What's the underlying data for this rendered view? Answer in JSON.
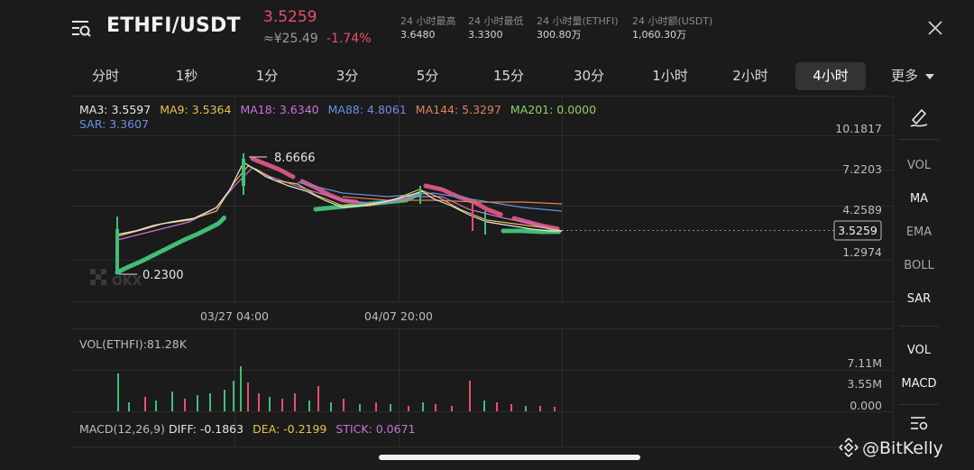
{
  "header": {
    "pair": "ETHFI/USDT",
    "price": "3.5259",
    "fiat_price": "≈¥25.49",
    "change": "-1.74%",
    "stats": [
      {
        "label": "24 小时最高",
        "value": "3.6480"
      },
      {
        "label": "24 小时最低",
        "value": "3.3300"
      },
      {
        "label": "24 小时量(ETHFI)",
        "value": "300.80万"
      },
      {
        "label": "24 小时额(USDT)",
        "value": "1,060.30万"
      }
    ]
  },
  "tabs": [
    "分时",
    "1秒",
    "1分",
    "3分",
    "5分",
    "15分",
    "30分",
    "1小时",
    "2小时",
    "4小时",
    "更多"
  ],
  "active_tab": "4小时",
  "indicators": {
    "ma": [
      {
        "label": "MA3: 3.5597",
        "color": "#e6e6e6"
      },
      {
        "label": "MA9: 3.5364",
        "color": "#e8c14a"
      },
      {
        "label": "MA18: 3.6340",
        "color": "#c774d9"
      },
      {
        "label": "MA88: 4.8061",
        "color": "#6a8fe0"
      },
      {
        "label": "MA144: 5.3297",
        "color": "#e0805a"
      },
      {
        "label": "MA201: 0.0000",
        "color": "#8fd06a"
      }
    ],
    "sar": {
      "label": "SAR: 3.3607",
      "color": "#6a8fe0"
    },
    "vol": {
      "label": "VOL(ETHFI):81.28K"
    },
    "macd": {
      "name": "MACD(12,26,9)",
      "diff": "DIFF: -0.1863",
      "dea": "DEA: -0.2199",
      "stick": "STICK: 0.0671"
    }
  },
  "price_axis": [
    "10.1817",
    "7.2203",
    "4.2589",
    "1.2974"
  ],
  "current_price_tag": "3.5259",
  "high_marker": "8.6666",
  "low_marker": "0.2300",
  "time_labels": [
    "03/27 04:00",
    "04/07 20:00"
  ],
  "volume_axis": [
    "7.11M",
    "3.55M",
    "0.000"
  ],
  "sidebar": {
    "items": [
      "VOL",
      "MA",
      "EMA",
      "BOLL",
      "SAR",
      "VOL",
      "MACD"
    ]
  },
  "colors": {
    "up": "#3fbf74",
    "down": "#e8506a",
    "background": "#1b1b1b"
  },
  "watermark": "@BitKelly"
}
